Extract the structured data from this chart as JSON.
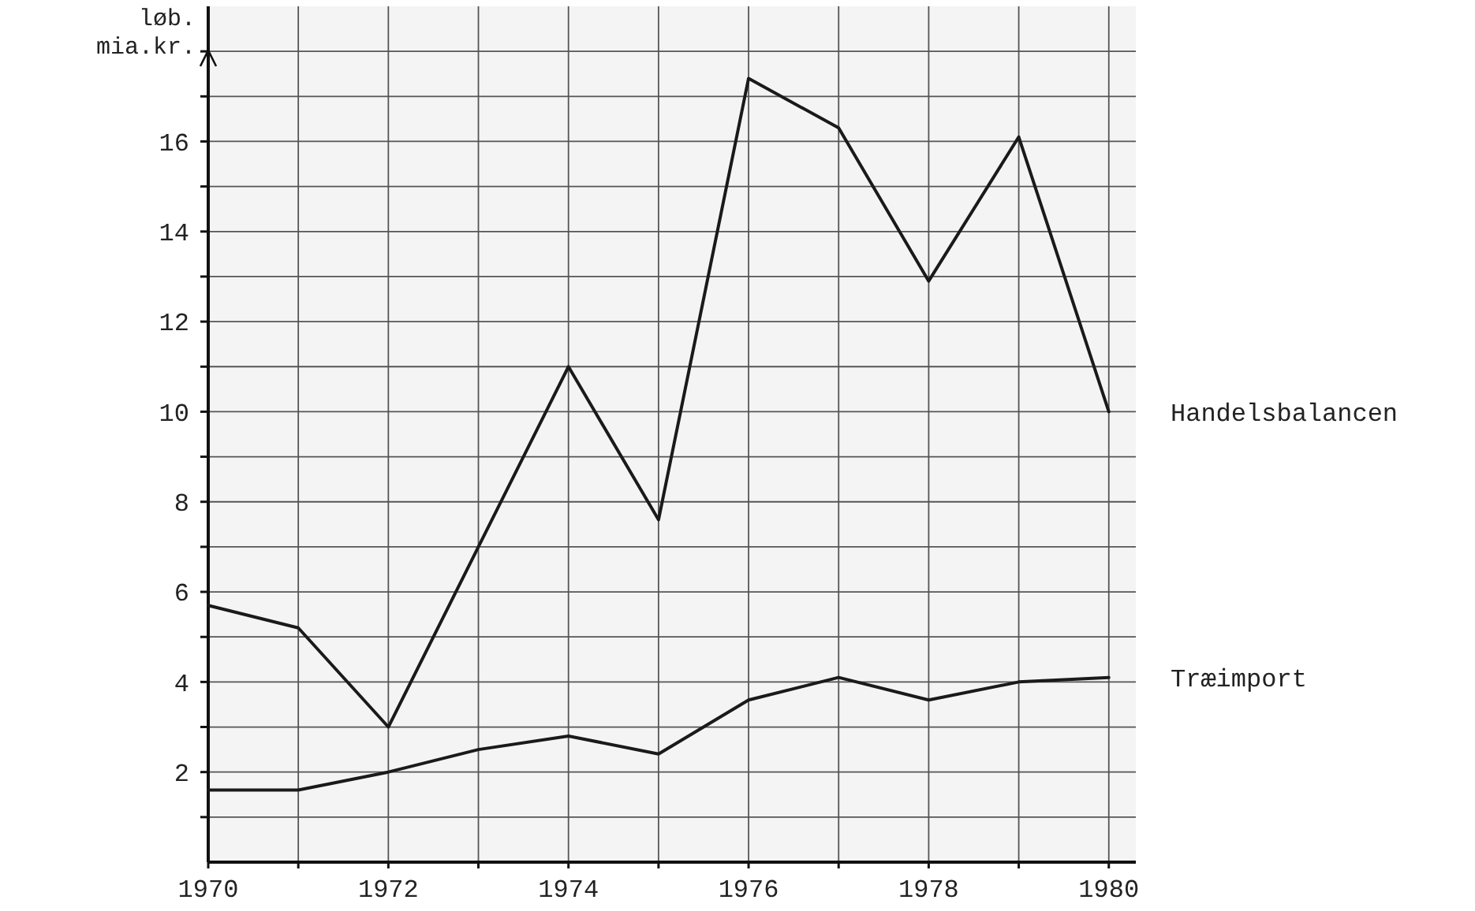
{
  "chart_data": {
    "type": "line",
    "ylabel": "løb.\nmia.kr.",
    "x": [
      1970,
      1971,
      1972,
      1973,
      1974,
      1975,
      1976,
      1977,
      1978,
      1979,
      1980
    ],
    "series": [
      {
        "name": "Handelsbalancen",
        "color": "#1a1a1a",
        "values": [
          5.7,
          5.2,
          3.0,
          7.0,
          11.0,
          7.6,
          17.4,
          16.3,
          12.9,
          16.1,
          10.0
        ]
      },
      {
        "name": "Træimport",
        "color": "#1a1a1a",
        "values": [
          1.6,
          1.6,
          2.0,
          2.5,
          2.8,
          2.4,
          3.6,
          4.1,
          3.6,
          4.0,
          4.1
        ]
      }
    ],
    "xlim": [
      1970,
      1980.3
    ],
    "xticks": [
      1970,
      {
        "value": 1971,
        "label": null
      },
      1972,
      {
        "value": 1973,
        "label": null
      },
      1974,
      {
        "value": 1975,
        "label": null
      },
      1976,
      {
        "value": 1977,
        "label": null
      },
      1978,
      {
        "value": 1979,
        "label": null
      },
      1980
    ],
    "ylim": [
      0,
      19
    ],
    "yticks": [
      {
        "value": 1,
        "label": null
      },
      2,
      {
        "value": 3,
        "label": null
      },
      4,
      {
        "value": 5,
        "label": null
      },
      6,
      {
        "value": 7,
        "label": null
      },
      8,
      {
        "value": 9,
        "label": null
      },
      10,
      {
        "value": 11,
        "label": null
      },
      12,
      {
        "value": 13,
        "label": null
      },
      14,
      {
        "value": 15,
        "label": null
      },
      16,
      {
        "value": 17,
        "label": null
      },
      {
        "value": 18,
        "label": null
      }
    ],
    "grid": true,
    "marker": "none",
    "line_style": "solid"
  }
}
